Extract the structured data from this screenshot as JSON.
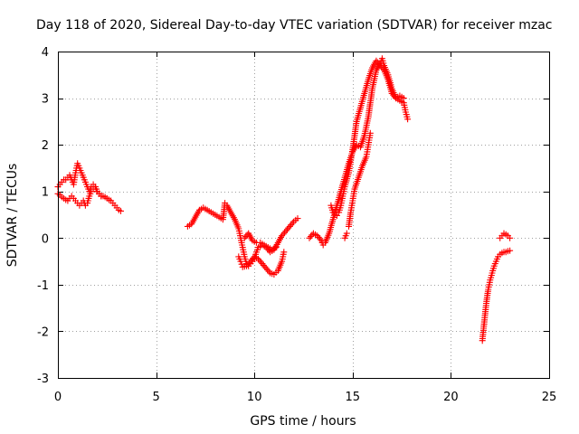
{
  "chart_data": {
    "type": "scatter",
    "title": "Day 118 of 2020, Sidereal Day-to-day VTEC variation (SDTVAR) for receiver mzac",
    "xlabel": "GPS time / hours",
    "ylabel": "SDTVAR / TECUs",
    "xlim": [
      0,
      25
    ],
    "ylim": [
      -3,
      4
    ],
    "grid": true,
    "marker": "plus",
    "color": "#ff0000",
    "xticks": [
      0,
      5,
      10,
      15,
      20,
      25
    ],
    "yticks": [
      -3,
      -2,
      -1,
      0,
      1,
      2,
      3,
      4
    ],
    "xtick_labels": [
      "0",
      "5",
      "10",
      "15",
      "20",
      "25"
    ],
    "ytick_labels": [
      "-3",
      "-2",
      "-1",
      "0",
      "1",
      "2",
      "3",
      "4"
    ],
    "segments": [
      [
        [
          0.0,
          1.1
        ],
        [
          0.1,
          1.15
        ],
        [
          0.2,
          1.2
        ],
        [
          0.3,
          1.25
        ],
        [
          0.4,
          1.25
        ],
        [
          0.5,
          1.3
        ],
        [
          0.6,
          1.35
        ],
        [
          0.7,
          1.25
        ],
        [
          0.8,
          1.15
        ],
        [
          0.9,
          1.4
        ],
        [
          1.0,
          1.6
        ],
        [
          1.1,
          1.5
        ],
        [
          1.2,
          1.4
        ],
        [
          1.3,
          1.3
        ],
        [
          1.4,
          1.2
        ],
        [
          1.5,
          1.1
        ],
        [
          1.6,
          1.0
        ],
        [
          1.7,
          1.1
        ],
        [
          1.8,
          1.15
        ],
        [
          1.9,
          1.1
        ],
        [
          2.0,
          1.0
        ],
        [
          2.1,
          0.95
        ],
        [
          2.2,
          0.9
        ],
        [
          2.3,
          0.9
        ],
        [
          2.4,
          0.88
        ],
        [
          2.5,
          0.85
        ],
        [
          2.6,
          0.82
        ],
        [
          2.7,
          0.8
        ],
        [
          2.8,
          0.75
        ],
        [
          2.9,
          0.7
        ],
        [
          3.0,
          0.65
        ],
        [
          3.1,
          0.6
        ],
        [
          3.2,
          0.58
        ]
      ],
      [
        [
          0.0,
          0.95
        ],
        [
          0.1,
          0.92
        ],
        [
          0.2,
          0.88
        ],
        [
          0.3,
          0.85
        ],
        [
          0.4,
          0.82
        ],
        [
          0.5,
          0.8
        ],
        [
          0.6,
          0.85
        ],
        [
          0.7,
          0.9
        ],
        [
          0.8,
          0.85
        ],
        [
          0.9,
          0.8
        ],
        [
          1.0,
          0.75
        ],
        [
          1.1,
          0.7
        ],
        [
          1.2,
          0.75
        ],
        [
          1.3,
          0.8
        ],
        [
          1.4,
          0.7
        ],
        [
          1.5,
          0.75
        ],
        [
          1.6,
          0.9
        ],
        [
          1.7,
          1.0
        ],
        [
          1.8,
          1.05
        ],
        [
          1.9,
          1.1
        ],
        [
          2.0,
          1.0
        ],
        [
          2.1,
          0.95
        ],
        [
          2.2,
          0.9
        ]
      ],
      [
        [
          6.6,
          0.25
        ],
        [
          6.8,
          0.3
        ],
        [
          7.0,
          0.45
        ],
        [
          7.2,
          0.6
        ],
        [
          7.4,
          0.65
        ],
        [
          7.6,
          0.6
        ],
        [
          7.8,
          0.55
        ],
        [
          8.0,
          0.5
        ],
        [
          8.2,
          0.45
        ],
        [
          8.4,
          0.4
        ],
        [
          8.5,
          0.75
        ],
        [
          8.6,
          0.7
        ],
        [
          8.8,
          0.55
        ],
        [
          9.0,
          0.4
        ],
        [
          9.2,
          0.2
        ],
        [
          9.3,
          0.0
        ],
        [
          9.4,
          -0.2
        ],
        [
          9.5,
          -0.4
        ],
        [
          9.6,
          -0.55
        ],
        [
          9.7,
          -0.6
        ],
        [
          9.8,
          -0.55
        ],
        [
          9.9,
          -0.5
        ],
        [
          10.0,
          -0.45
        ],
        [
          10.1,
          -0.3
        ],
        [
          10.2,
          -0.2
        ],
        [
          10.4,
          -0.15
        ],
        [
          10.6,
          -0.2
        ],
        [
          10.8,
          -0.3
        ],
        [
          11.0,
          -0.25
        ],
        [
          11.2,
          -0.1
        ],
        [
          11.4,
          0.05
        ],
        [
          11.6,
          0.15
        ],
        [
          11.8,
          0.25
        ],
        [
          12.0,
          0.35
        ],
        [
          12.2,
          0.42
        ]
      ],
      [
        [
          9.2,
          -0.4
        ],
        [
          9.3,
          -0.5
        ],
        [
          9.4,
          -0.62
        ],
        [
          9.6,
          -0.6
        ],
        [
          9.8,
          -0.5
        ],
        [
          10.0,
          -0.4
        ],
        [
          10.2,
          -0.45
        ],
        [
          10.4,
          -0.55
        ],
        [
          10.6,
          -0.65
        ],
        [
          10.8,
          -0.75
        ],
        [
          11.0,
          -0.78
        ],
        [
          11.2,
          -0.7
        ],
        [
          11.4,
          -0.5
        ],
        [
          11.5,
          -0.3
        ],
        [
          9.5,
          0.0
        ],
        [
          9.7,
          0.1
        ],
        [
          9.9,
          -0.05
        ],
        [
          10.1,
          -0.1
        ],
        [
          10.3,
          -0.1
        ],
        [
          10.5,
          -0.15
        ],
        [
          10.7,
          -0.2
        ],
        [
          10.9,
          -0.25
        ],
        [
          11.1,
          -0.2
        ]
      ],
      [
        [
          12.8,
          0.0
        ],
        [
          13.0,
          0.1
        ],
        [
          13.2,
          0.05
        ],
        [
          13.4,
          -0.05
        ],
        [
          13.5,
          -0.15
        ],
        [
          13.6,
          -0.1
        ],
        [
          13.8,
          0.1
        ],
        [
          14.0,
          0.4
        ],
        [
          14.2,
          0.7
        ],
        [
          14.4,
          1.0
        ],
        [
          14.6,
          1.3
        ],
        [
          14.8,
          1.6
        ],
        [
          15.0,
          1.85
        ],
        [
          15.2,
          2.0
        ],
        [
          15.4,
          1.95
        ],
        [
          15.6,
          2.2
        ],
        [
          15.8,
          2.6
        ],
        [
          16.0,
          3.2
        ],
        [
          16.2,
          3.6
        ],
        [
          16.4,
          3.75
        ],
        [
          16.5,
          3.85
        ],
        [
          16.6,
          3.7
        ],
        [
          16.8,
          3.5
        ],
        [
          17.0,
          3.2
        ],
        [
          17.2,
          3.0
        ],
        [
          17.4,
          2.95
        ],
        [
          17.6,
          2.9
        ],
        [
          17.7,
          2.7
        ],
        [
          17.8,
          2.55
        ]
      ],
      [
        [
          13.9,
          0.7
        ],
        [
          14.0,
          0.55
        ],
        [
          14.1,
          0.5
        ],
        [
          14.2,
          0.48
        ],
        [
          14.3,
          0.55
        ],
        [
          14.4,
          0.7
        ],
        [
          14.5,
          0.9
        ],
        [
          14.6,
          1.1
        ],
        [
          14.8,
          1.4
        ],
        [
          15.0,
          1.9
        ],
        [
          15.1,
          2.2
        ],
        [
          15.2,
          2.5
        ],
        [
          15.4,
          2.8
        ],
        [
          15.6,
          3.1
        ],
        [
          15.8,
          3.4
        ],
        [
          16.0,
          3.65
        ],
        [
          16.2,
          3.8
        ],
        [
          16.4,
          3.7
        ],
        [
          16.6,
          3.6
        ],
        [
          16.8,
          3.4
        ],
        [
          17.0,
          3.1
        ],
        [
          17.2,
          3.0
        ],
        [
          17.4,
          3.05
        ],
        [
          17.6,
          3.0
        ],
        [
          14.8,
          0.25
        ],
        [
          14.9,
          0.55
        ],
        [
          15.0,
          0.8
        ],
        [
          15.1,
          1.05
        ],
        [
          15.3,
          1.3
        ],
        [
          15.5,
          1.55
        ],
        [
          15.7,
          1.75
        ],
        [
          15.8,
          2.0
        ],
        [
          15.9,
          2.25
        ],
        [
          14.6,
          0.0
        ],
        [
          14.7,
          0.1
        ]
      ],
      [
        [
          21.6,
          -2.2
        ],
        [
          21.7,
          -1.8
        ],
        [
          21.8,
          -1.4
        ],
        [
          21.9,
          -1.1
        ],
        [
          22.0,
          -0.9
        ],
        [
          22.1,
          -0.75
        ],
        [
          22.2,
          -0.6
        ],
        [
          22.3,
          -0.5
        ],
        [
          22.4,
          -0.4
        ],
        [
          22.5,
          -0.35
        ],
        [
          22.6,
          -0.32
        ],
        [
          22.7,
          -0.3
        ],
        [
          22.8,
          -0.3
        ],
        [
          22.9,
          -0.28
        ],
        [
          23.0,
          -0.27
        ]
      ],
      [
        [
          22.5,
          0.0
        ],
        [
          22.6,
          0.05
        ],
        [
          22.7,
          0.1
        ],
        [
          22.8,
          0.08
        ],
        [
          22.9,
          0.05
        ],
        [
          23.0,
          0.0
        ]
      ]
    ]
  }
}
